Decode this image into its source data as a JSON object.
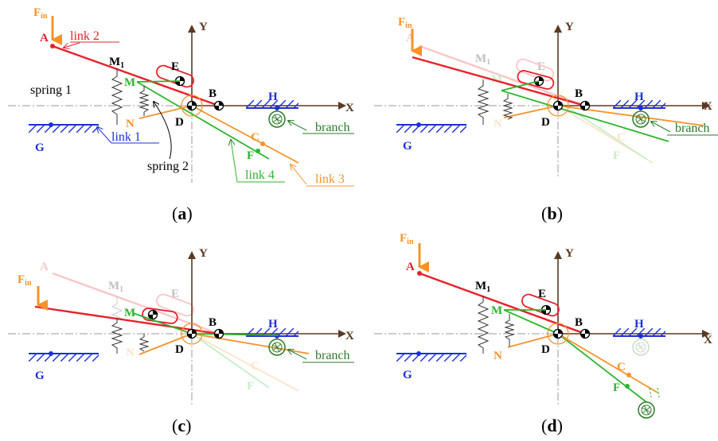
{
  "colors": {
    "red": "#e8202a",
    "green": "#2db52d",
    "orange": "#f5932a",
    "blue": "#1c2fd6",
    "dark_green": "#2a7a2a",
    "brown": "#5a3a22",
    "axis_gray": "#9a9a9a",
    "black": "#000000"
  },
  "labels": {
    "F": "F",
    "in": "in",
    "A": "A",
    "B": "B",
    "C": "C",
    "D": "D",
    "E": "E",
    "F_point": "F",
    "G": "G",
    "H": "H",
    "M": "M",
    "M1": "M",
    "sub1": "1",
    "N": "N",
    "X": "X",
    "Y": "Y",
    "link1": "link 1",
    "link2": "link 2",
    "link3": "link 3",
    "link4": "link 4",
    "spring1": "spring 1",
    "spring2": "spring 2",
    "branch": "branch"
  },
  "panels": [
    {
      "id": "a",
      "caption_open": "(",
      "caption_letter": "a",
      "caption_close": ")"
    },
    {
      "id": "b",
      "caption_open": "(",
      "caption_letter": "b",
      "caption_close": ")"
    },
    {
      "id": "c",
      "caption_open": "(",
      "caption_letter": "c",
      "caption_close": ")"
    },
    {
      "id": "d",
      "caption_open": "(",
      "caption_letter": "d",
      "caption_close": ")"
    }
  ]
}
